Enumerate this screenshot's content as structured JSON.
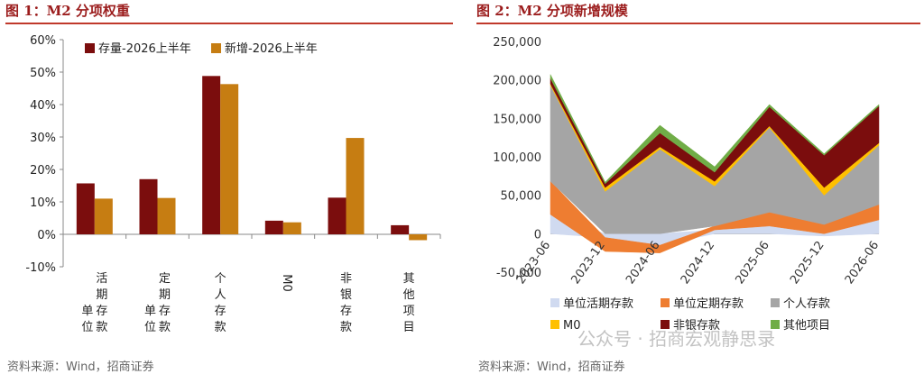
{
  "left": {
    "title": "图 1：M2 分项权重",
    "source": "资料来源：Wind，招商证券"
  },
  "right": {
    "title": "图 2：M2 分项新增规模",
    "source": "资料来源：Wind，招商证券"
  },
  "watermark": "公众号 · 招商宏观静思录",
  "colors": {
    "title": "#9b1c1c",
    "rule": "#c0392b",
    "dark_red": "#7b0d0d",
    "orange": "#c67d12"
  },
  "chart_data": [
    {
      "type": "bar",
      "title": "",
      "categories": [
        "单位活期存款",
        "单位定期存款",
        "个人存款",
        "M0",
        "非银存款",
        "其他项目"
      ],
      "series": [
        {
          "name": "存量-2026上半年",
          "color": "#7b0d0d",
          "values": [
            15.7,
            17.0,
            48.8,
            4.2,
            11.3,
            2.8
          ]
        },
        {
          "name": "新增-2026上半年",
          "color": "#c67d12",
          "values": [
            11.0,
            11.2,
            46.3,
            3.7,
            29.7,
            -1.8
          ]
        }
      ],
      "ylim": [
        -10,
        60
      ],
      "yticks": [
        "-10%",
        "0%",
        "10%",
        "20%",
        "30%",
        "40%",
        "50%",
        "60%"
      ],
      "legend": "top"
    },
    {
      "type": "area",
      "stacked": true,
      "title": "",
      "x": [
        "2023-06",
        "2023-12",
        "2024-06",
        "2024-12",
        "2025-06",
        "2025-12",
        "2026-06"
      ],
      "series": [
        {
          "name": "单位活期存款",
          "color": "#d0daf0",
          "values": [
            25000,
            -5000,
            -15000,
            5000,
            10000,
            -3000,
            18000
          ]
        },
        {
          "name": "单位定期存款",
          "color": "#ee7d31",
          "values": [
            43000,
            -18000,
            -10000,
            5000,
            18000,
            12000,
            20000
          ]
        },
        {
          "name": "个人存款",
          "color": "#a5a5a5",
          "values": [
            125000,
            55000,
            110000,
            52000,
            110000,
            38000,
            77000
          ]
        },
        {
          "name": "M0",
          "color": "#ffc000",
          "values": [
            2000,
            5000,
            3000,
            6000,
            2000,
            10000,
            3000
          ]
        },
        {
          "name": "非银存款",
          "color": "#7b0d0d",
          "values": [
            7000,
            5000,
            18000,
            12000,
            25000,
            42000,
            48000
          ]
        },
        {
          "name": "其他项目",
          "color": "#70ad47",
          "values": [
            5000,
            2000,
            10000,
            7000,
            3000,
            2000,
            2000
          ]
        }
      ],
      "ylim": [
        -50000,
        250000
      ],
      "yticks": [
        "-50,000",
        "0",
        "50,000",
        "100,000",
        "150,000",
        "200,000",
        "250,000"
      ],
      "legend": "bottom"
    }
  ]
}
